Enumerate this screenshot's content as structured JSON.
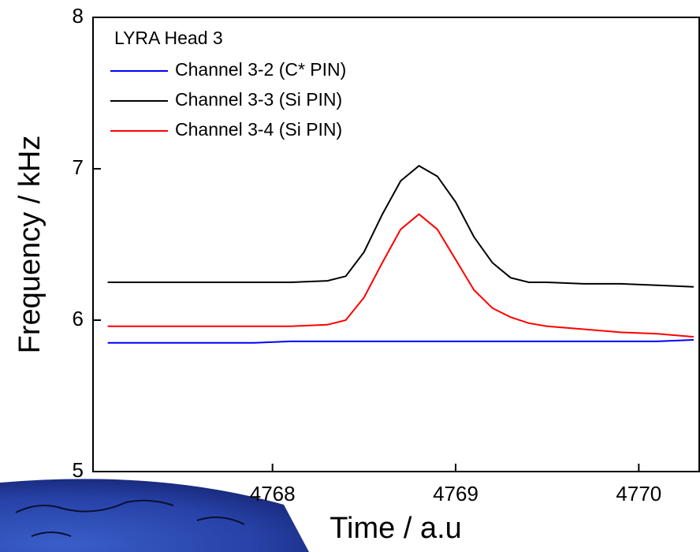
{
  "chart_data": {
    "type": "line",
    "legend_title": "LYRA Head 3",
    "x_label": "Time / a.u",
    "y_label": "Frequency / kHz",
    "x": [
      4767.1,
      4767.3,
      4767.5,
      4767.7,
      4767.9,
      4768.1,
      4768.3,
      4768.4,
      4768.5,
      4768.6,
      4768.7,
      4768.8,
      4768.9,
      4769.0,
      4769.1,
      4769.2,
      4769.3,
      4769.4,
      4769.5,
      4769.7,
      4769.9,
      4770.1,
      4770.3
    ],
    "series": [
      {
        "name": "Channel 3-2 (C* PIN)",
        "color": "#0000ff",
        "values": [
          5.85,
          5.85,
          5.85,
          5.85,
          5.85,
          5.86,
          5.86,
          5.86,
          5.86,
          5.86,
          5.86,
          5.86,
          5.86,
          5.86,
          5.86,
          5.86,
          5.86,
          5.86,
          5.86,
          5.86,
          5.86,
          5.86,
          5.87
        ]
      },
      {
        "name": "Channel 3-3 (Si PIN)",
        "color": "#000000",
        "values": [
          6.25,
          6.25,
          6.25,
          6.25,
          6.25,
          6.25,
          6.26,
          6.29,
          6.45,
          6.7,
          6.92,
          7.02,
          6.95,
          6.78,
          6.55,
          6.38,
          6.28,
          6.25,
          6.25,
          6.24,
          6.24,
          6.23,
          6.22
        ]
      },
      {
        "name": "Channel 3-4 (Si PIN)",
        "color": "#ff0000",
        "values": [
          5.96,
          5.96,
          5.96,
          5.96,
          5.96,
          5.96,
          5.97,
          6.0,
          6.15,
          6.38,
          6.6,
          6.7,
          6.6,
          6.4,
          6.2,
          6.08,
          6.02,
          5.98,
          5.96,
          5.94,
          5.92,
          5.91,
          5.89
        ]
      }
    ],
    "xlim": [
      4767.02,
      4770.33
    ],
    "xticks": [
      4768,
      4769,
      4770
    ],
    "ylim": [
      5,
      8
    ],
    "yticks": [
      5,
      6,
      7,
      8
    ],
    "grid": false,
    "legend_position": "upper-left"
  }
}
